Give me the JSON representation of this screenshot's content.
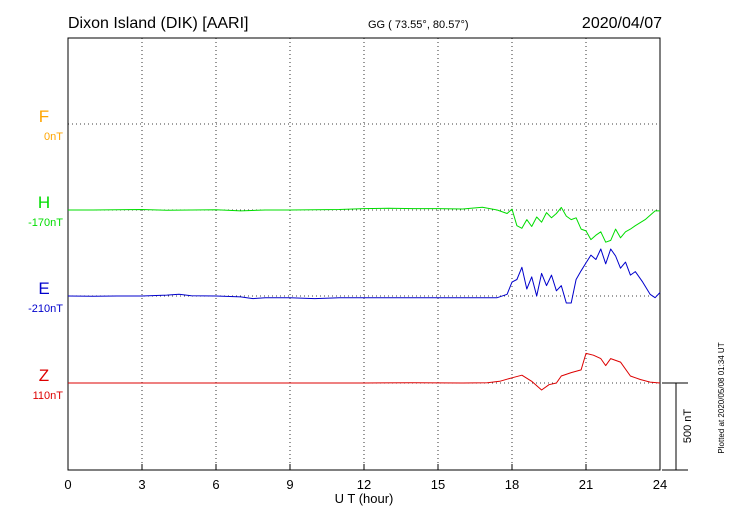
{
  "header": {
    "title": "Dixon Island (DIK)  [AARI]",
    "coords": "GG ( 73.55°,  80.57°)",
    "date": "2020/04/07"
  },
  "side_note": "Plotted at 2020/05/08 01:34 UT",
  "scale_bar_label": "500 nT",
  "colors": {
    "F": "#ffa500",
    "H": "#00dd00",
    "E": "#0000cc",
    "Z": "#dd0000"
  },
  "chart_data": {
    "type": "line",
    "xlabel": "U T (hour)",
    "xlim": [
      0,
      24
    ],
    "xticks": [
      0,
      3,
      6,
      9,
      12,
      15,
      18,
      21,
      24
    ],
    "scale_nT": 500,
    "series": [
      {
        "name": "F",
        "baseline_label": "0nT",
        "color": "#ffa500",
        "x": [],
        "y": []
      },
      {
        "name": "H",
        "baseline_label": "-170nT",
        "color": "#00dd00",
        "x": [
          0,
          1,
          2,
          3,
          4,
          5,
          6,
          7,
          8,
          9,
          10,
          11,
          12,
          13,
          14,
          15,
          16,
          16.8,
          17.4,
          17.8,
          18.0,
          18.2,
          18.4,
          18.6,
          18.8,
          19.0,
          19.2,
          19.4,
          19.6,
          19.8,
          20.0,
          20.2,
          20.4,
          20.6,
          20.8,
          21.0,
          21.2,
          21.4,
          21.6,
          21.8,
          22.0,
          22.2,
          22.4,
          22.6,
          22.8,
          23.0,
          23.4,
          23.8,
          24.0
        ],
        "y": [
          0,
          0,
          2,
          3,
          -2,
          0,
          1,
          -5,
          0,
          0,
          2,
          3,
          8,
          10,
          8,
          8,
          6,
          16,
          0,
          -20,
          5,
          -90,
          -105,
          -55,
          -95,
          -40,
          -70,
          -15,
          -45,
          -20,
          15,
          -35,
          -55,
          -45,
          -110,
          -120,
          -170,
          -145,
          -125,
          -185,
          -175,
          -110,
          -160,
          -125,
          -110,
          -90,
          -55,
          -5,
          -5
        ]
      },
      {
        "name": "E",
        "baseline_label": "-210nT",
        "color": "#0000cc",
        "x": [
          0,
          1,
          2,
          3,
          4,
          4.5,
          5,
          6,
          7,
          7.5,
          8,
          9,
          10,
          11,
          12,
          13,
          14,
          15,
          16,
          16.8,
          17.4,
          17.8,
          18.0,
          18.2,
          18.4,
          18.6,
          18.8,
          19.0,
          19.2,
          19.4,
          19.6,
          19.8,
          20.0,
          20.2,
          20.4,
          20.6,
          20.8,
          21.0,
          21.2,
          21.4,
          21.6,
          21.8,
          22.0,
          22.2,
          22.4,
          22.6,
          22.8,
          23.0,
          23.3,
          23.6,
          23.8,
          24.0
        ],
        "y": [
          0,
          -2,
          0,
          0,
          5,
          10,
          2,
          0,
          -5,
          -15,
          -10,
          -10,
          -15,
          -10,
          -10,
          -10,
          -10,
          -10,
          -10,
          -10,
          -10,
          10,
          80,
          95,
          165,
          40,
          110,
          0,
          130,
          60,
          120,
          30,
          60,
          -40,
          -40,
          95,
          145,
          190,
          235,
          210,
          270,
          185,
          270,
          230,
          160,
          195,
          120,
          140,
          80,
          10,
          -10,
          20
        ]
      },
      {
        "name": "Z",
        "baseline_label": "110nT",
        "color": "#dd0000",
        "x": [
          0,
          2,
          4,
          6,
          8,
          10,
          12,
          14,
          16,
          17.0,
          17.5,
          18.0,
          18.4,
          18.8,
          19.2,
          19.5,
          19.8,
          20.0,
          20.4,
          20.8,
          21.0,
          21.3,
          21.6,
          21.8,
          22.0,
          22.4,
          22.8,
          23.2,
          23.6,
          24.0
        ],
        "y": [
          0,
          0,
          0,
          0,
          0,
          0,
          0,
          1,
          0,
          2,
          10,
          30,
          45,
          10,
          -40,
          -10,
          0,
          40,
          60,
          75,
          170,
          160,
          140,
          100,
          140,
          120,
          40,
          20,
          5,
          0
        ]
      }
    ]
  }
}
